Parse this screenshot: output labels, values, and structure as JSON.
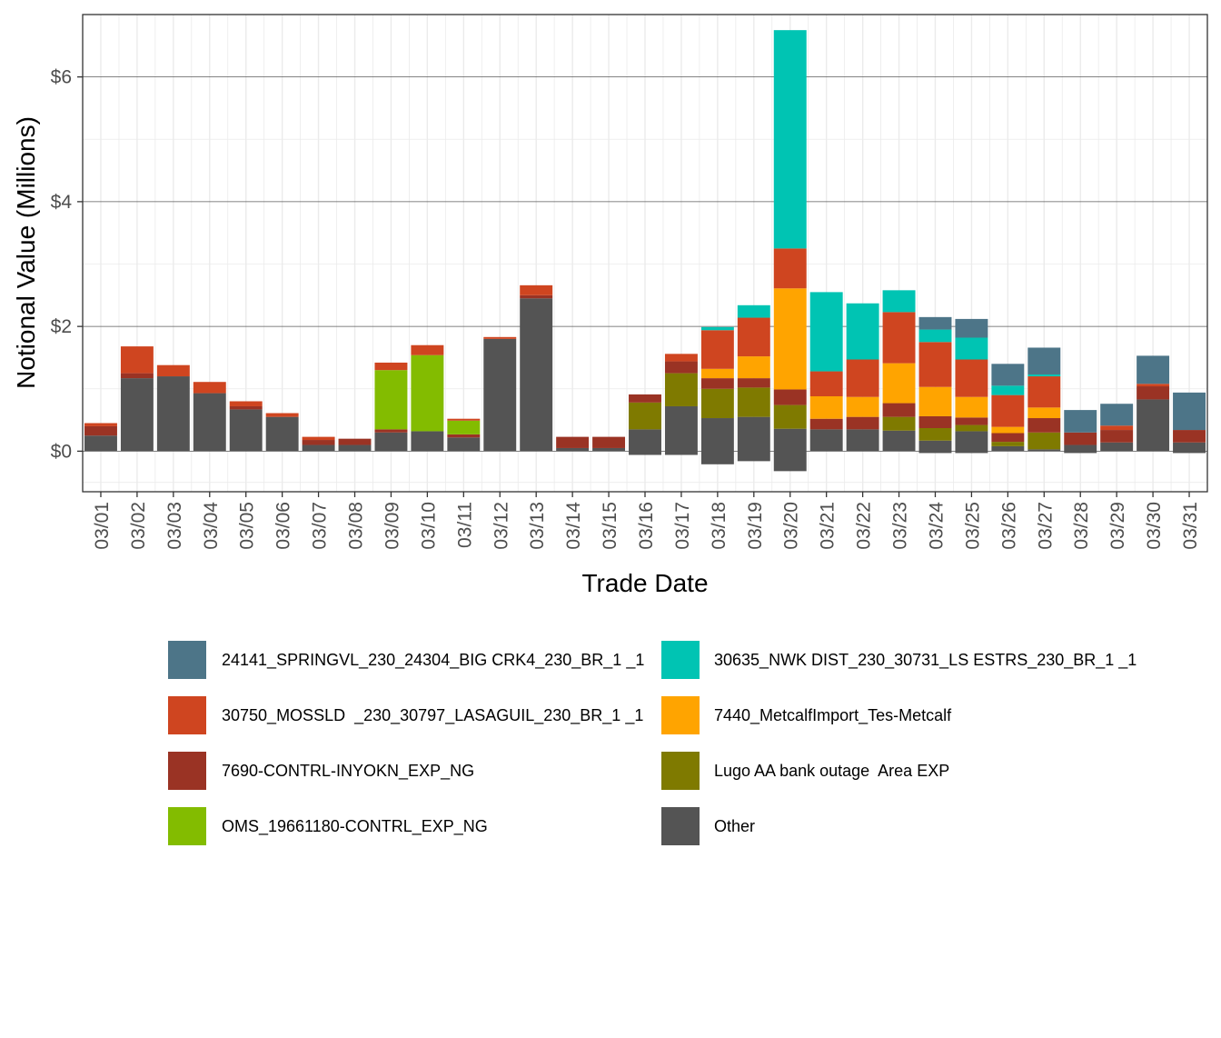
{
  "chart_data": {
    "type": "bar",
    "stacked": true,
    "title": "",
    "xlabel": "Trade Date",
    "ylabel": "Notional Value (Millions)",
    "ylim": [
      -0.65,
      7.0
    ],
    "y_ticks": [
      0,
      2,
      4,
      6
    ],
    "y_tick_labels": [
      "$0",
      "$2",
      "$4",
      "$6"
    ],
    "grid": true,
    "legend_position": "bottom",
    "categories": [
      "03/01",
      "03/02",
      "03/03",
      "03/04",
      "03/05",
      "03/06",
      "03/07",
      "03/08",
      "03/09",
      "03/10",
      "03/11",
      "03/12",
      "03/13",
      "03/14",
      "03/15",
      "03/16",
      "03/17",
      "03/18",
      "03/19",
      "03/20",
      "03/21",
      "03/22",
      "03/23",
      "03/24",
      "03/25",
      "03/26",
      "03/27",
      "03/28",
      "03/29",
      "03/30",
      "03/31"
    ],
    "series": [
      {
        "name": "Other",
        "color": "#545454",
        "values": [
          0.25,
          1.17,
          1.2,
          0.93,
          0.67,
          0.55,
          0.1,
          0.1,
          0.3,
          0.32,
          0.22,
          1.8,
          2.45,
          0.05,
          0.05,
          0.35,
          0.72,
          0.53,
          0.55,
          0.36,
          0.35,
          0.35,
          0.33,
          0.17,
          0.32,
          0.08,
          0.03,
          0.1,
          0.14,
          0.83,
          0.14
        ],
        "neg": [
          0,
          0,
          0,
          0,
          0,
          0,
          0,
          0,
          0,
          0,
          0,
          0,
          0,
          0,
          0,
          -0.06,
          -0.06,
          -0.21,
          -0.16,
          -0.32,
          0,
          0,
          0,
          -0.03,
          -0.03,
          0,
          0,
          -0.03,
          0,
          0,
          -0.03
        ]
      },
      {
        "name": "Lugo AA bank outage  Area EXP",
        "color": "#7f7a00",
        "values": [
          0,
          0,
          0,
          0,
          0,
          0,
          0,
          0,
          0,
          0,
          0,
          0,
          0,
          0,
          0,
          0.43,
          0.53,
          0.47,
          0.47,
          0.38,
          0,
          0,
          0.22,
          0.2,
          0.1,
          0.07,
          0.27,
          0,
          0,
          0,
          0
        ]
      },
      {
        "name": "7690-CONTRL-INYOKN_EXP_NG",
        "color": "#9a3324",
        "values": [
          0.15,
          0.08,
          0,
          0,
          0.05,
          0,
          0.08,
          0.1,
          0.05,
          0,
          0.05,
          0,
          0.05,
          0.18,
          0.18,
          0.13,
          0.19,
          0.17,
          0.15,
          0.25,
          0.17,
          0.2,
          0.22,
          0.19,
          0.12,
          0.14,
          0.23,
          0.2,
          0.2,
          0.21,
          0.2
        ]
      },
      {
        "name": "OMS_19661180-CONTRL_EXP_NG",
        "color": "#83bc00",
        "values": [
          0,
          0,
          0,
          0,
          0,
          0,
          0,
          0,
          0.95,
          1.22,
          0.22,
          0,
          0,
          0,
          0,
          0,
          0,
          0,
          0,
          0,
          0,
          0,
          0,
          0,
          0,
          0,
          0,
          0,
          0,
          0,
          0
        ]
      },
      {
        "name": "7440_MetcalfImport_Tes-Metcalf",
        "color": "#ffa400",
        "values": [
          0,
          0,
          0,
          0,
          0,
          0,
          0,
          0,
          0,
          0,
          0,
          0,
          0,
          0,
          0,
          0,
          0,
          0.15,
          0.35,
          1.62,
          0.36,
          0.32,
          0.64,
          0.47,
          0.33,
          0.1,
          0.17,
          0,
          0,
          0,
          0
        ]
      },
      {
        "name": "30750_MOSSLD  _230_30797_LASAGUIL_230_BR_1 _1",
        "color": "#cf4520",
        "values": [
          0.05,
          0.43,
          0.18,
          0.18,
          0.08,
          0.06,
          0.05,
          0,
          0.12,
          0.16,
          0.03,
          0.03,
          0.16,
          0,
          0,
          0,
          0.12,
          0.62,
          0.62,
          0.64,
          0.4,
          0.6,
          0.82,
          0.72,
          0.6,
          0.51,
          0.5,
          0,
          0.07,
          0.04,
          0
        ]
      },
      {
        "name": "30635_NWK DIST_230_30731_LS ESTRS_230_BR_1 _1",
        "color": "#00c4b3",
        "values": [
          0,
          0,
          0,
          0,
          0,
          0,
          0,
          0,
          0,
          0,
          0,
          0,
          0,
          0,
          0,
          0,
          0,
          0.05,
          0.2,
          3.5,
          1.27,
          0.9,
          0.35,
          0.2,
          0.35,
          0.15,
          0.03,
          0,
          0,
          0,
          0
        ]
      },
      {
        "name": "24141_SPRINGVL_230_24304_BIG CRK4_230_BR_1 _1",
        "color": "#4d7588",
        "values": [
          0,
          0,
          0,
          0,
          0,
          0,
          0,
          0,
          0,
          0,
          0,
          0,
          0,
          0,
          0,
          0,
          0,
          0,
          0,
          0,
          0,
          0,
          0,
          0.2,
          0.3,
          0.35,
          0.43,
          0.36,
          0.35,
          0.45,
          0.6
        ]
      }
    ],
    "legend_left": [
      "24141_SPRINGVL_230_24304_BIG CRK4_230_BR_1 _1",
      "30750_MOSSLD  _230_30797_LASAGUIL_230_BR_1 _1",
      "7690-CONTRL-INYOKN_EXP_NG",
      "OMS_19661180-CONTRL_EXP_NG"
    ],
    "legend_right": [
      "30635_NWK DIST_230_30731_LS ESTRS_230_BR_1 _1",
      "7440_MetcalfImport_Tes-Metcalf",
      "Lugo AA bank outage  Area EXP",
      "Other"
    ]
  }
}
